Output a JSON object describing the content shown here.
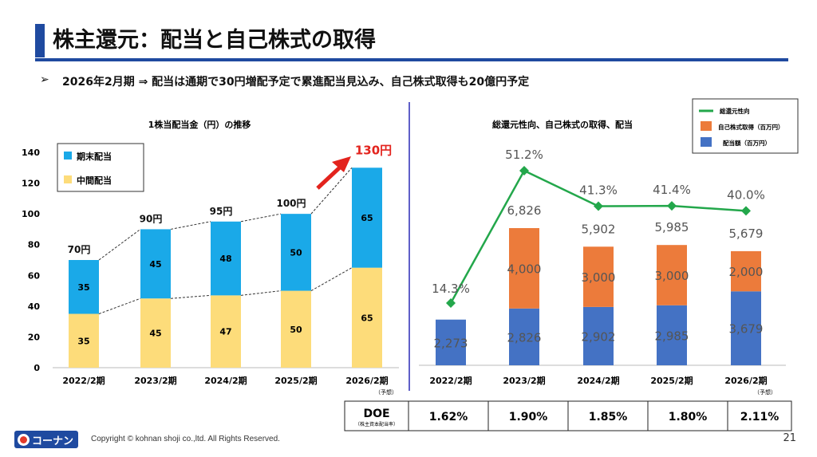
{
  "slide": {
    "title": "株主還元：配当と自己株式の取得",
    "bullet_mark": "➢",
    "bullet": "2026年2月期  ⇒  配当は通期で30円増配予定で累進配当見込み、自己株式取得も20億円予定",
    "copyright": "Copyright © kohnan shoji co.,ltd. All Rights Reserved.",
    "logo_text": "コーナン",
    "page_number": "21"
  },
  "colors": {
    "brand": "#1f4aa0",
    "year_end": "#1aa9e8",
    "interim": "#fddc7a",
    "buyback": "#ec7b3b",
    "dividend": "#4472c4",
    "payout": "#23a74b",
    "highlight": "#e3231d"
  },
  "chart_data": [
    {
      "type": "bar",
      "stacked": true,
      "title": "1株当配当金（円）の推移",
      "categories": [
        "2022/2期",
        "2023/2期",
        "2024/2期",
        "2025/2期",
        "2026/2期"
      ],
      "category_notes": [
        "",
        "",
        "",
        "",
        "（予想）"
      ],
      "series": [
        {
          "name": "中間配当",
          "values": [
            35,
            45,
            47,
            50,
            65
          ]
        },
        {
          "name": "期末配当",
          "values": [
            35,
            45,
            48,
            50,
            65
          ]
        }
      ],
      "totals": [
        "70円",
        "90円",
        "95円",
        "100円",
        "130円"
      ],
      "ylim": [
        0,
        140
      ],
      "yticks": [
        0,
        20,
        40,
        60,
        80,
        100,
        120,
        140
      ],
      "legend": "top-left",
      "grid": false
    },
    {
      "type": "bar",
      "stacked": true,
      "title": "総還元性向、自己株式の取得、配当",
      "categories": [
        "2022/2期",
        "2023/2期",
        "2024/2期",
        "2025/2期",
        "2026/2期"
      ],
      "category_notes": [
        "",
        "",
        "",
        "",
        "（予想）"
      ],
      "series": [
        {
          "name": "配当額（百万円）",
          "values": [
            2273,
            2826,
            2902,
            2985,
            3679
          ],
          "labels": [
            "2,273",
            "2,826",
            "2,902",
            "2,985",
            "3,679"
          ]
        },
        {
          "name": "自己株式取得（百万円）",
          "values": [
            0,
            4000,
            3000,
            3000,
            2000
          ],
          "labels": [
            "",
            "4,000",
            "3,000",
            "3,000",
            "2,000"
          ]
        }
      ],
      "line_series": {
        "name": "総還元性向",
        "values": [
          14.3,
          51.2,
          41.3,
          41.4,
          40.0
        ],
        "labels": [
          "14.3%",
          "51.2%",
          "41.3%",
          "41.4%",
          "40.0%"
        ]
      },
      "totals": [
        "",
        "6,826",
        "5,902",
        "5,985",
        "5,679"
      ],
      "legend": "top-right",
      "grid": false
    }
  ],
  "doe": {
    "label": "DOE",
    "sublabel": "（株主資本配当率）",
    "values": [
      "1.62%",
      "1.90%",
      "1.85%",
      "1.80%",
      "2.11%"
    ]
  }
}
